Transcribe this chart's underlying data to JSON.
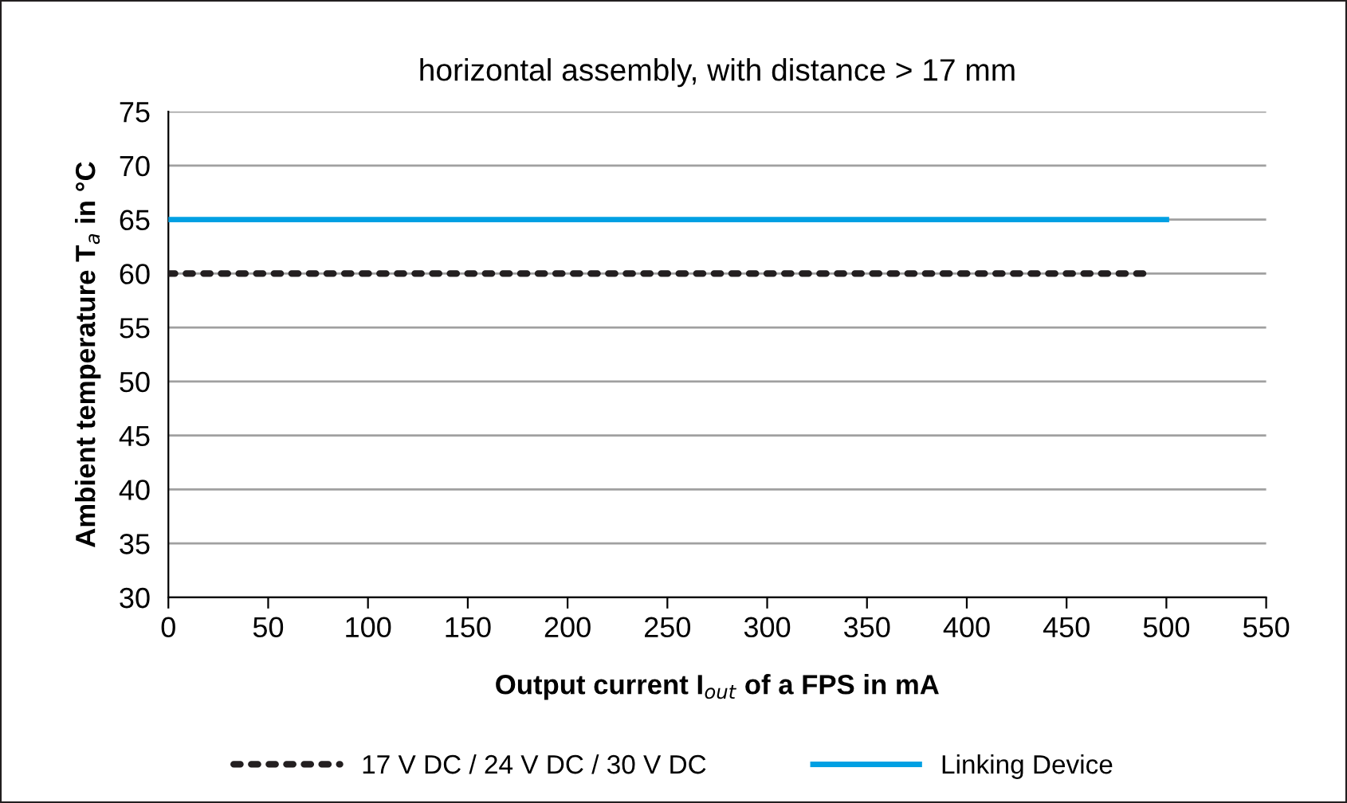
{
  "chart_data": {
    "type": "line",
    "title": "horizontal assembly, with distance > 17 mm",
    "xlabel": "Output current I$_{out}$ of a FPS in mA",
    "ylabel": "Ambient temperature T$_{a}$ in °C",
    "series": [
      {
        "name": "17 V DC / 24 V DC / 30 V DC",
        "color": "#231f20",
        "x": [
          0,
          492
        ],
        "values": [
          60,
          60
        ],
        "line_style": "dotted"
      },
      {
        "name": "Linking Device",
        "color": "#00a0e3",
        "x": [
          0,
          500
        ],
        "values": [
          65,
          65
        ],
        "line_style": "solid"
      }
    ],
    "xlim": [
      0,
      550
    ],
    "xticks": [
      0,
      50,
      100,
      150,
      200,
      250,
      300,
      350,
      400,
      450,
      500,
      550
    ],
    "ylim": [
      30,
      75
    ],
    "yticks": [
      30,
      35,
      40,
      45,
      50,
      55,
      60,
      65,
      70,
      75
    ],
    "grid": "y",
    "legend": "bottom",
    "marker": "none"
  }
}
